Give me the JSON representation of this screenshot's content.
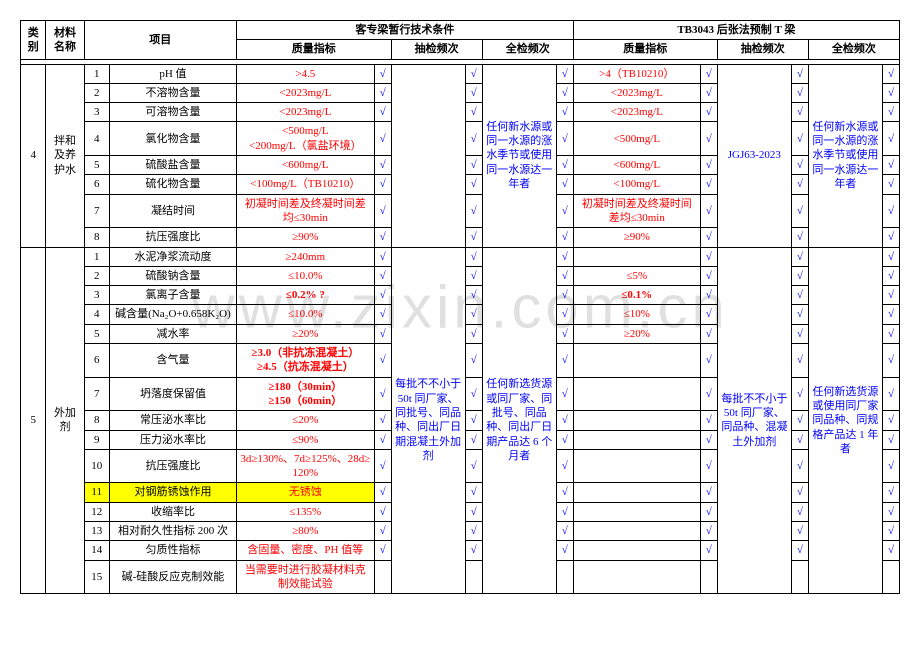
{
  "watermark": "www.zixin.com.cn",
  "headers": {
    "h_cat": "类别",
    "h_mat": "材料名称",
    "h_item": "项目",
    "h_left": "客专梁暂行技术条件",
    "h_right": "TB3043 后张法预制 T 梁",
    "h_qi": "质量指标",
    "h_spot": "抽检频次",
    "h_full": "全检频次"
  },
  "sec4": {
    "cat": "4",
    "mat": "拌和及养护水",
    "spotL": "",
    "fullL": "任何新水源或同一水源的涨水季节或使用同一水源达一年者",
    "spotR": "JGJ63-2023",
    "fullR": "任何新水源或同一水源的涨水季节或使用同一水源达一年者",
    "rows": [
      {
        "n": "1",
        "name": "pH 值",
        "ql": ">4.5",
        "qr": ">4（TB10210）"
      },
      {
        "n": "2",
        "name": "不溶物含量",
        "ql": "<2023mg/L",
        "qr": "<2023mg/L"
      },
      {
        "n": "3",
        "name": "可溶物含量",
        "ql": "<2023mg/L",
        "qr": "<2023mg/L"
      },
      {
        "n": "4",
        "name": "氯化物含量",
        "ql": "<500mg/L\n<200mg/L（氯盐环境）",
        "qr": "<500mg/L"
      },
      {
        "n": "5",
        "name": "硫酸盐含量",
        "ql": "<600mg/L",
        "qr": "<600mg/L"
      },
      {
        "n": "6",
        "name": "硫化物含量",
        "ql": "<100mg/L（TB10210）",
        "qr": "<100mg/L"
      },
      {
        "n": "7",
        "name": "凝结时间",
        "ql": "初凝时间差及终凝时间差均≤30min",
        "qr": "初凝时间差及终凝时间差均≤30min"
      },
      {
        "n": "8",
        "name": "抗压强度比",
        "ql": "≥90%",
        "qr": "≥90%"
      }
    ]
  },
  "sec5": {
    "cat": "5",
    "mat": "外加剂",
    "spotL": "每批不不小于50t 同厂家、同批号、同品种、同出厂日期混凝土外加剂",
    "fullL": "任何新选货源或同厂家、同批号、同品种、同出厂日期产品达 6 个月者",
    "spotR": "每批不不小于50t 同厂家、同品种、混凝土外加剂",
    "fullR": "任何新选货源或使用同厂家同品种、同规格产品达 1 年者",
    "rows": [
      {
        "n": "1",
        "name": "水泥净浆流动度",
        "ql": "≥240mm",
        "qlRed": true,
        "qr": ""
      },
      {
        "n": "2",
        "name": "硫酸钠含量",
        "ql": "≤10.0%",
        "qlRed": true,
        "qr": "≤5%"
      },
      {
        "n": "3",
        "name": "氯离子含量",
        "ql": "≤0.2%   ?",
        "qlRed": true,
        "bold": true,
        "qr": "≤0.1%",
        "qrRed": true,
        "qrBold": true
      },
      {
        "n": "4",
        "name": "碱含量(Na₂O+0.658K₂O)",
        "ql": "≤10.0%",
        "qlRed": true,
        "qr": "≤10%"
      },
      {
        "n": "5",
        "name": "减水率",
        "ql": "≥20%",
        "qlRed": true,
        "qr": "≥20%"
      },
      {
        "n": "6",
        "name": "含气量",
        "ql": "≥3.0（非抗冻混凝土）\n≥4.5（抗冻混凝土）",
        "qlRed": true,
        "bold": true,
        "qr": ""
      },
      {
        "n": "7",
        "name": "坍落度保留值",
        "ql": "≥180（30min）\n≥150（60min）",
        "qlRed": true,
        "bold": true,
        "qr": ""
      },
      {
        "n": "8",
        "name": "常压泌水率比",
        "ql": "≤20%",
        "qlRed": true,
        "qr": ""
      },
      {
        "n": "9",
        "name": "压力泌水率比",
        "ql": "≤90%",
        "qlRed": true,
        "qr": ""
      },
      {
        "n": "10",
        "name": "抗压强度比",
        "ql": "3d≥130%、7d≥125%、28d≥120%",
        "qlRed": true,
        "qr": ""
      },
      {
        "n": "11",
        "name": "对钢筋锈蚀作用",
        "ql": "无锈蚀",
        "qlRed": true,
        "hl": true,
        "qr": ""
      },
      {
        "n": "12",
        "name": "收缩率比",
        "ql": "≤135%",
        "qlRed": true,
        "qr": ""
      },
      {
        "n": "13",
        "name": "相对耐久性指标 200 次",
        "ql": "≥80%",
        "qlRed": true,
        "qr": ""
      },
      {
        "n": "14",
        "name": "匀质性指标",
        "ql": "含固量、密度、PH 值等",
        "qlRed": true,
        "qr": ""
      },
      {
        "n": "15",
        "name": "碱-硅酸反应克制效能",
        "ql": "当需要时进行胶凝材料克制效能试验",
        "qlRed": true,
        "qr": "",
        "noMarks": true
      }
    ]
  },
  "check": "√"
}
